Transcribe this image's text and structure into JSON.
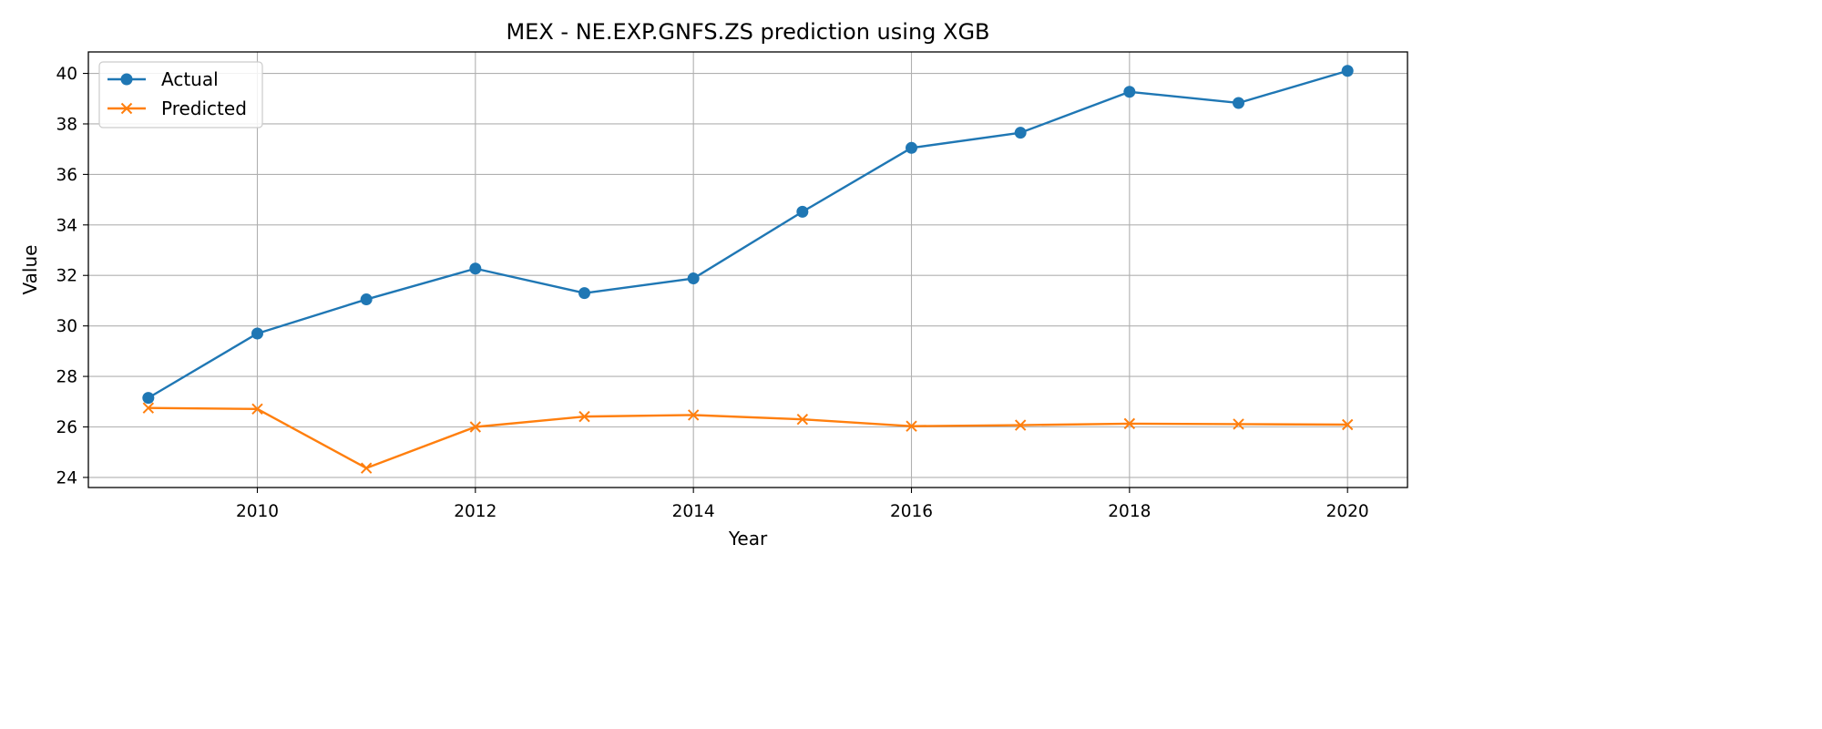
{
  "chart_data": {
    "type": "line",
    "title": "MEX - NE.EXP.GNFS.ZS prediction using XGB",
    "xlabel": "Year",
    "ylabel": "Value",
    "x": [
      2009,
      2010,
      2011,
      2012,
      2013,
      2014,
      2015,
      2016,
      2017,
      2018,
      2019,
      2020
    ],
    "xlim": [
      2008.45,
      2020.55
    ],
    "ylim": [
      23.6,
      40.85
    ],
    "x_ticks": [
      2010,
      2012,
      2014,
      2016,
      2018,
      2020
    ],
    "y_ticks": [
      24,
      26,
      28,
      30,
      32,
      34,
      36,
      38,
      40
    ],
    "grid": true,
    "legend_position": "top-left",
    "series": [
      {
        "name": "Actual",
        "color": "#1f77b4",
        "marker": "circle",
        "values": [
          27.15,
          29.7,
          31.05,
          32.27,
          31.3,
          31.88,
          34.52,
          37.05,
          37.65,
          39.27,
          38.83,
          40.1
        ]
      },
      {
        "name": "Predicted",
        "color": "#ff7f0e",
        "marker": "x",
        "values": [
          26.75,
          26.71,
          24.37,
          26.0,
          26.41,
          26.47,
          26.3,
          26.03,
          26.07,
          26.13,
          26.11,
          26.09
        ]
      }
    ]
  }
}
